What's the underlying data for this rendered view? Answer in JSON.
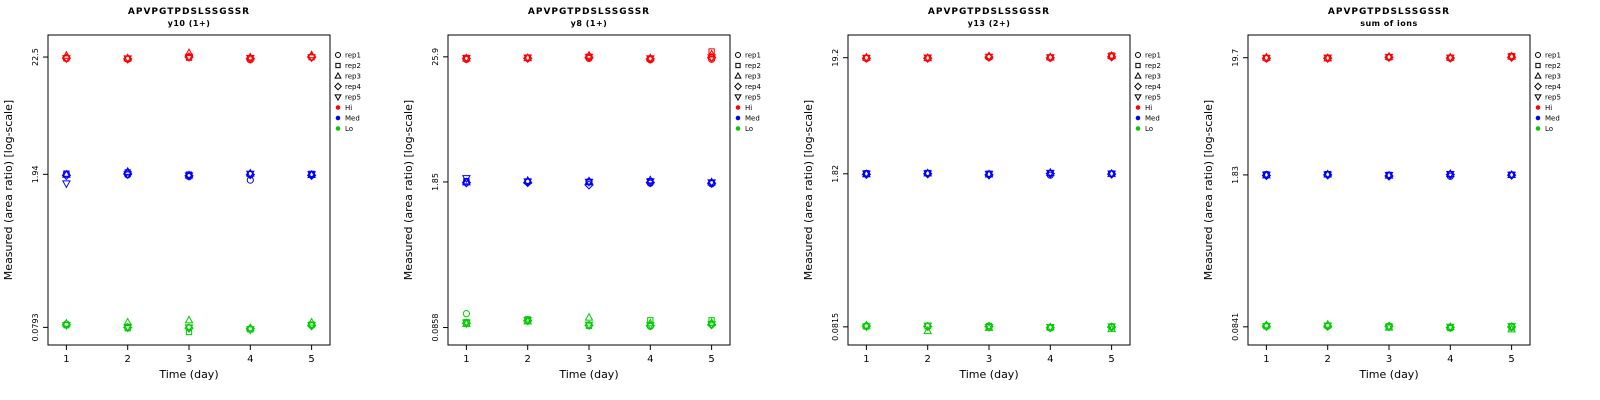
{
  "figure": {
    "x_axis_label": "Time (day)",
    "y_axis_label": "Measured (area ratio) [log-scale]"
  },
  "legend": {
    "reps": [
      {
        "label": "rep1",
        "marker": "circle"
      },
      {
        "label": "rep2",
        "marker": "square"
      },
      {
        "label": "rep3",
        "marker": "triangle-up"
      },
      {
        "label": "rep4",
        "marker": "diamond"
      },
      {
        "label": "rep5",
        "marker": "triangle-down"
      }
    ],
    "groups": [
      {
        "label": "Hi",
        "color": "#FF0000"
      },
      {
        "label": "Med",
        "color": "#0000FF"
      },
      {
        "label": "Lo",
        "color": "#00CD00"
      }
    ]
  },
  "chart_data": [
    {
      "type": "scatter",
      "title": "APVPGTPDSLSSGSSR",
      "subtitle": "y10 (1+)",
      "xlabel": "Time (day)",
      "ylabel": "Measured (area ratio) [log-scale]",
      "x_ticks": [
        1,
        2,
        3,
        4,
        5
      ],
      "y_scale": "log",
      "y_ticks": [
        22.5,
        1.94,
        0.0793
      ],
      "y_tick_labels": [
        "22.5",
        "1.94",
        "0.0793"
      ],
      "series": [
        {
          "name": "Hi",
          "color": "#FF0000",
          "reps": [
            {
              "name": "rep1",
              "values": [
                21.8,
                21.5,
                22.4,
                21.2,
                22.6
              ]
            },
            {
              "name": "rep2",
              "values": [
                21.9,
                21.7,
                22.2,
                21.9,
                22.4
              ]
            },
            {
              "name": "rep3",
              "values": [
                23.2,
                22.0,
                24.5,
                22.4,
                23.4
              ]
            },
            {
              "name": "rep4",
              "values": [
                22.0,
                21.6,
                22.5,
                21.8,
                22.5
              ]
            },
            {
              "name": "rep5",
              "values": [
                21.9,
                21.8,
                22.6,
                22.0,
                22.3
              ]
            }
          ]
        },
        {
          "name": "Med",
          "color": "#0000FF",
          "reps": [
            {
              "name": "rep1",
              "values": [
                1.95,
                1.92,
                1.85,
                1.72,
                1.93
              ]
            },
            {
              "name": "rep2",
              "values": [
                1.97,
                2.02,
                1.93,
                1.95,
                1.96
              ]
            },
            {
              "name": "rep3",
              "values": [
                1.93,
                2.05,
                1.9,
                1.98,
                1.92
              ]
            },
            {
              "name": "rep4",
              "values": [
                1.9,
                1.96,
                1.88,
                1.93,
                1.9
              ]
            },
            {
              "name": "rep5",
              "values": [
                1.6,
                1.94,
                1.89,
                1.96,
                1.94
              ]
            }
          ]
        },
        {
          "name": "Lo",
          "color": "#00CD00",
          "reps": [
            {
              "name": "rep1",
              "values": [
                0.085,
                0.08,
                0.079,
                0.077,
                0.083
              ]
            },
            {
              "name": "rep2",
              "values": [
                0.083,
                0.078,
                0.072,
                0.076,
                0.084
              ]
            },
            {
              "name": "rep3",
              "values": [
                0.086,
                0.088,
                0.092,
                0.078,
                0.088
              ]
            },
            {
              "name": "rep4",
              "values": [
                0.084,
                0.079,
                0.078,
                0.077,
                0.082
              ]
            },
            {
              "name": "rep5",
              "values": [
                0.083,
                0.08,
                0.079,
                0.076,
                0.083
              ]
            }
          ]
        }
      ]
    },
    {
      "type": "scatter",
      "title": "APVPGTPDSLSSGSSR",
      "subtitle": "y8 (1+)",
      "xlabel": "Time (day)",
      "ylabel": "Measured (area ratio) [log-scale]",
      "x_ticks": [
        1,
        2,
        3,
        4,
        5
      ],
      "y_scale": "log",
      "y_ticks": [
        25.9,
        1.85,
        0.0858
      ],
      "y_tick_labels": [
        "25.9",
        "1.85",
        "0.0858"
      ],
      "series": [
        {
          "name": "Hi",
          "color": "#FF0000",
          "reps": [
            {
              "name": "rep1",
              "values": [
                24.5,
                25.2,
                25.0,
                24.3,
                24.6
              ]
            },
            {
              "name": "rep2",
              "values": [
                25.3,
                25.5,
                26.0,
                25.0,
                29.0
              ]
            },
            {
              "name": "rep3",
              "values": [
                25.1,
                25.3,
                26.6,
                25.2,
                27.3
              ]
            },
            {
              "name": "rep4",
              "values": [
                25.0,
                25.1,
                25.6,
                24.8,
                25.4
              ]
            },
            {
              "name": "rep5",
              "values": [
                25.2,
                25.4,
                25.8,
                25.0,
                25.5
              ]
            }
          ]
        },
        {
          "name": "Med",
          "color": "#0000FF",
          "reps": [
            {
              "name": "rep1",
              "values": [
                1.85,
                1.84,
                1.86,
                1.8,
                1.78
              ]
            },
            {
              "name": "rep2",
              "values": [
                1.88,
                1.87,
                1.84,
                1.88,
                1.82
              ]
            },
            {
              "name": "rep3",
              "values": [
                1.84,
                1.9,
                1.88,
                1.92,
                1.84
              ]
            },
            {
              "name": "rep4",
              "values": [
                1.82,
                1.83,
                1.74,
                1.83,
                1.8
              ]
            },
            {
              "name": "rep5",
              "values": [
                2.0,
                1.86,
                1.85,
                1.86,
                1.83
              ]
            }
          ]
        },
        {
          "name": "Lo",
          "color": "#00CD00",
          "reps": [
            {
              "name": "rep1",
              "values": [
                0.115,
                0.1,
                0.09,
                0.088,
                0.092
              ]
            },
            {
              "name": "rep2",
              "values": [
                0.096,
                0.102,
                0.089,
                0.1,
                0.1
              ]
            },
            {
              "name": "rep3",
              "values": [
                0.093,
                0.098,
                0.106,
                0.094,
                0.095
              ]
            },
            {
              "name": "rep4",
              "values": [
                0.094,
                0.099,
                0.09,
                0.089,
                0.091
              ]
            },
            {
              "name": "rep5",
              "values": [
                0.095,
                0.1,
                0.091,
                0.09,
                0.092
              ]
            }
          ]
        }
      ]
    },
    {
      "type": "scatter",
      "title": "APVPGTPDSLSSGSSR",
      "subtitle": "y13 (2+)",
      "xlabel": "Time (day)",
      "ylabel": "Measured (area ratio) [log-scale]",
      "x_ticks": [
        1,
        2,
        3,
        4,
        5
      ],
      "y_scale": "log",
      "y_ticks": [
        19.2,
        1.82,
        0.0815
      ],
      "y_tick_labels": [
        "19.2",
        "1.82",
        "0.0815"
      ],
      "series": [
        {
          "name": "Hi",
          "color": "#FF0000",
          "reps": [
            {
              "name": "rep1",
              "values": [
                18.9,
                19.0,
                19.3,
                19.1,
                19.6
              ]
            },
            {
              "name": "rep2",
              "values": [
                19.1,
                19.2,
                19.5,
                19.3,
                20.1
              ]
            },
            {
              "name": "rep3",
              "values": [
                19.3,
                19.1,
                19.8,
                19.4,
                19.9
              ]
            },
            {
              "name": "rep4",
              "values": [
                19.0,
                19.0,
                19.4,
                19.2,
                19.5
              ]
            },
            {
              "name": "rep5",
              "values": [
                19.1,
                19.2,
                19.5,
                19.3,
                19.7
              ]
            }
          ]
        },
        {
          "name": "Med",
          "color": "#0000FF",
          "reps": [
            {
              "name": "rep1",
              "values": [
                1.83,
                1.83,
                1.79,
                1.77,
                1.82
              ]
            },
            {
              "name": "rep2",
              "values": [
                1.84,
                1.85,
                1.82,
                1.84,
                1.83
              ]
            },
            {
              "name": "rep3",
              "values": [
                1.81,
                1.84,
                1.8,
                1.86,
                1.82
              ]
            },
            {
              "name": "rep4",
              "values": [
                1.8,
                1.82,
                1.78,
                1.83,
                1.81
              ]
            },
            {
              "name": "rep5",
              "values": [
                1.82,
                1.83,
                1.81,
                1.85,
                1.82
              ]
            }
          ]
        },
        {
          "name": "Lo",
          "color": "#00CD00",
          "reps": [
            {
              "name": "rep1",
              "values": [
                0.083,
                0.082,
                0.081,
                0.08,
                0.082
              ]
            },
            {
              "name": "rep2",
              "values": [
                0.082,
                0.083,
                0.083,
                0.08,
                0.081
              ]
            },
            {
              "name": "rep3",
              "values": [
                0.084,
                0.075,
                0.08,
                0.081,
                0.078
              ]
            },
            {
              "name": "rep4",
              "values": [
                0.083,
                0.082,
                0.082,
                0.08,
                0.081
              ]
            },
            {
              "name": "rep5",
              "values": [
                0.082,
                0.083,
                0.081,
                0.081,
                0.082
              ]
            }
          ]
        }
      ]
    },
    {
      "type": "scatter",
      "title": "APVPGTPDSLSSGSSR",
      "subtitle": "sum of ions",
      "xlabel": "Time (day)",
      "ylabel": "Measured (area ratio) [log-scale]",
      "x_ticks": [
        1,
        2,
        3,
        4,
        5
      ],
      "y_scale": "log",
      "y_ticks": [
        19.7,
        1.83,
        0.0841
      ],
      "y_tick_labels": [
        "19.7",
        "1.83",
        "0.0841"
      ],
      "series": [
        {
          "name": "Hi",
          "color": "#FF0000",
          "reps": [
            {
              "name": "rep1",
              "values": [
                19.4,
                19.5,
                19.8,
                19.5,
                20.0
              ]
            },
            {
              "name": "rep2",
              "values": [
                19.6,
                19.6,
                19.9,
                19.7,
                20.4
              ]
            },
            {
              "name": "rep3",
              "values": [
                19.8,
                19.5,
                20.1,
                19.8,
                20.2
              ]
            },
            {
              "name": "rep4",
              "values": [
                19.5,
                19.5,
                19.9,
                19.6,
                19.9
              ]
            },
            {
              "name": "rep5",
              "values": [
                19.6,
                19.7,
                20.0,
                19.7,
                20.1
              ]
            }
          ]
        },
        {
          "name": "Med",
          "color": "#0000FF",
          "reps": [
            {
              "name": "rep1",
              "values": [
                1.84,
                1.84,
                1.8,
                1.78,
                1.83
              ]
            },
            {
              "name": "rep2",
              "values": [
                1.85,
                1.86,
                1.83,
                1.85,
                1.84
              ]
            },
            {
              "name": "rep3",
              "values": [
                1.82,
                1.85,
                1.81,
                1.87,
                1.83
              ]
            },
            {
              "name": "rep4",
              "values": [
                1.81,
                1.83,
                1.79,
                1.84,
                1.82
              ]
            },
            {
              "name": "rep5",
              "values": [
                1.83,
                1.84,
                1.82,
                1.86,
                1.83
              ]
            }
          ]
        },
        {
          "name": "Lo",
          "color": "#00CD00",
          "reps": [
            {
              "name": "rep1",
              "values": [
                0.086,
                0.085,
                0.084,
                0.083,
                0.085
              ]
            },
            {
              "name": "rep2",
              "values": [
                0.085,
                0.086,
                0.085,
                0.082,
                0.083
              ]
            },
            {
              "name": "rep3",
              "values": [
                0.087,
                0.088,
                0.083,
                0.084,
                0.08
              ]
            },
            {
              "name": "rep4",
              "values": [
                0.085,
                0.085,
                0.085,
                0.083,
                0.084
              ]
            },
            {
              "name": "rep5",
              "values": [
                0.085,
                0.086,
                0.084,
                0.084,
                0.085
              ]
            }
          ]
        }
      ]
    }
  ]
}
